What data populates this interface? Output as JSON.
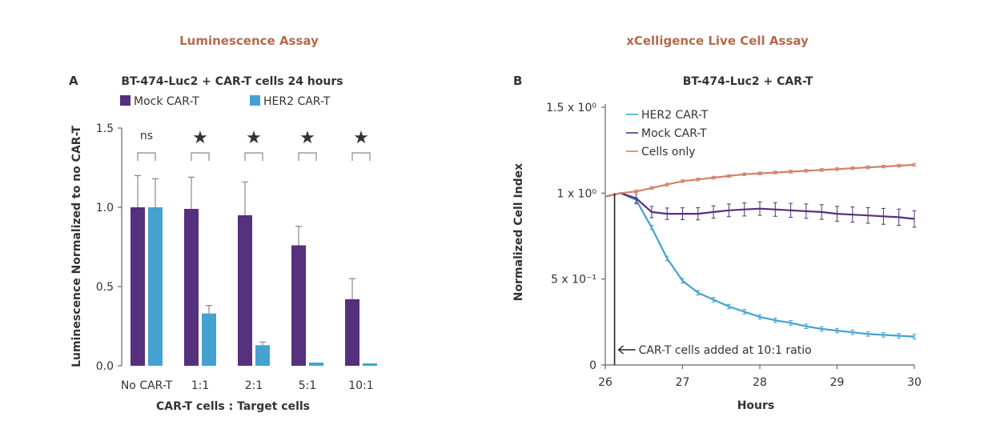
{
  "sections": {
    "left_title": "Luminescence Assay",
    "right_title": "xCelligence Live Cell Assay"
  },
  "colors": {
    "mock": "#55307c",
    "her2": "#43a2cf",
    "cells_only": "#d2826a",
    "section_title": "#b56a4b",
    "text": "#333333"
  },
  "chart_data": [
    {
      "type": "bar",
      "panel_label": "A",
      "title": "BT-474-Luc2 + CAR-T cells 24 hours",
      "xlabel": "CAR-T cells : Target cells",
      "ylabel": "Luminescence Normalized to no CAR-T",
      "categories": [
        "No CAR-T",
        "1:1",
        "2:1",
        "5:1",
        "10:1"
      ],
      "ylim": [
        0,
        1.5
      ],
      "yticks": [
        "0.0",
        "0.5",
        "1.0",
        "1.5"
      ],
      "legend_position": "top",
      "series": [
        {
          "name": "Mock CAR-T",
          "values": [
            1.0,
            0.99,
            0.95,
            0.76,
            0.42
          ],
          "errors": [
            0.2,
            0.2,
            0.21,
            0.12,
            0.13
          ]
        },
        {
          "name": "HER2 CAR-T",
          "values": [
            1.0,
            0.33,
            0.13,
            0.02,
            0.015
          ],
          "errors": [
            0.18,
            0.05,
            0.02,
            0.0,
            0.0
          ]
        }
      ],
      "significance": [
        "ns",
        "★",
        "★",
        "★",
        "★"
      ]
    },
    {
      "type": "line",
      "panel_label": "B",
      "title": "BT-474-Luc2 + CAR-T",
      "xlabel": "Hours",
      "ylabel": "Normalized Cell Index",
      "xlim": [
        26,
        30
      ],
      "xticks": [
        "26",
        "27",
        "28",
        "29",
        "30"
      ],
      "ylim": [
        0,
        1.5
      ],
      "yticks": [
        "0",
        "5 x 10⁻¹",
        "1 x 10⁰",
        "1.5 x 10⁰"
      ],
      "legend_position": "top-left",
      "series": [
        {
          "name": "HER2 CAR-T",
          "x": [
            26.0,
            26.2,
            26.4,
            26.6,
            26.8,
            27.0,
            27.2,
            27.4,
            27.6,
            27.8,
            28.0,
            28.2,
            28.4,
            28.6,
            28.8,
            29.0,
            29.2,
            29.4,
            29.6,
            29.8,
            30.0
          ],
          "y": [
            0.98,
            1.0,
            0.96,
            0.8,
            0.62,
            0.49,
            0.42,
            0.38,
            0.34,
            0.31,
            0.28,
            0.26,
            0.245,
            0.225,
            0.21,
            0.2,
            0.19,
            0.18,
            0.175,
            0.17,
            0.165
          ]
        },
        {
          "name": "Mock CAR-T",
          "x": [
            26.0,
            26.2,
            26.4,
            26.6,
            26.8,
            27.0,
            27.2,
            27.4,
            27.6,
            27.8,
            28.0,
            28.2,
            28.4,
            28.6,
            28.8,
            29.0,
            29.2,
            29.4,
            29.6,
            29.8,
            30.0
          ],
          "y": [
            0.98,
            1.0,
            0.97,
            0.89,
            0.88,
            0.88,
            0.88,
            0.89,
            0.9,
            0.905,
            0.91,
            0.905,
            0.9,
            0.895,
            0.89,
            0.88,
            0.875,
            0.87,
            0.865,
            0.86,
            0.85
          ]
        },
        {
          "name": "Cells only",
          "x": [
            26.0,
            26.2,
            26.4,
            26.6,
            26.8,
            27.0,
            27.2,
            27.4,
            27.6,
            27.8,
            28.0,
            28.2,
            28.4,
            28.6,
            28.8,
            29.0,
            29.2,
            29.4,
            29.6,
            29.8,
            30.0
          ],
          "y": [
            0.98,
            1.0,
            1.01,
            1.03,
            1.05,
            1.07,
            1.08,
            1.09,
            1.1,
            1.11,
            1.115,
            1.12,
            1.125,
            1.13,
            1.135,
            1.14,
            1.145,
            1.15,
            1.155,
            1.16,
            1.165
          ]
        }
      ],
      "annotation": {
        "text": "CAR-T cells added at 10:1 ratio",
        "x": 26.12
      }
    }
  ]
}
